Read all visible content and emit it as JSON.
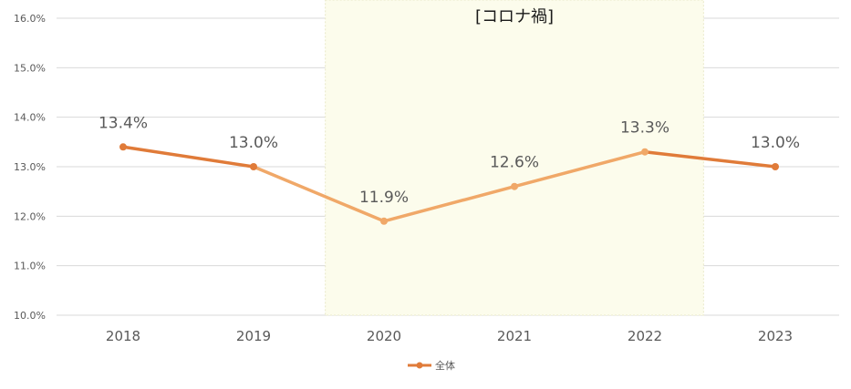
{
  "chart_data": {
    "type": "line",
    "categories": [
      "2018",
      "2019",
      "2020",
      "2021",
      "2022",
      "2023"
    ],
    "series": [
      {
        "name": "全体",
        "values": [
          13.4,
          13.0,
          11.9,
          12.6,
          13.3,
          13.0
        ],
        "labels": [
          "13.4%",
          "13.0%",
          "11.9%",
          "12.6%",
          "13.3%",
          "13.0%"
        ],
        "color": "#E07B39",
        "highlight_color": "#F0A868"
      }
    ],
    "ylim": [
      10.0,
      16.0
    ],
    "yticks": [
      10.0,
      11.0,
      12.0,
      13.0,
      14.0,
      15.0,
      16.0
    ],
    "ytick_labels": [
      "10.0%",
      "11.0%",
      "12.0%",
      "13.0%",
      "14.0%",
      "15.0%",
      "16.0%"
    ],
    "grid": true,
    "legend_position": "bottom",
    "highlight_region": {
      "label": "[コロナ禍]",
      "from_category": "2020",
      "to_category": "2022",
      "fill_color": "#FCFCEC"
    }
  }
}
